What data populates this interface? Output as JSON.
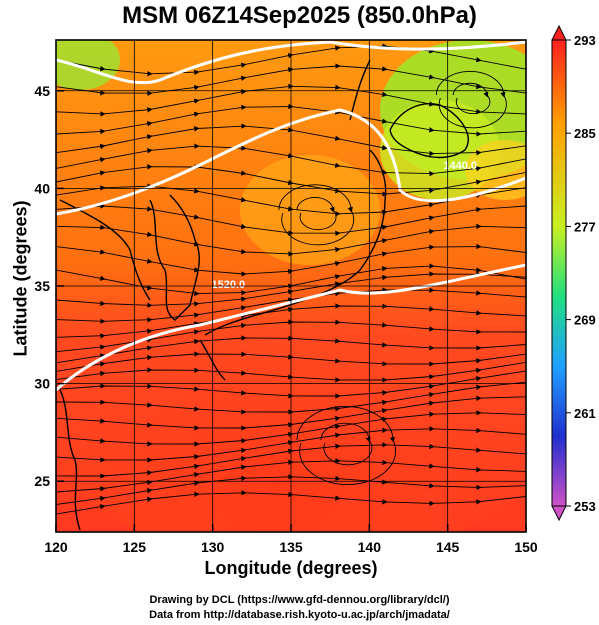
{
  "title": "MSM 06Z14Sep2025 (850.0hPa)",
  "x_axis": {
    "label": "Longitude (degrees)",
    "ticks": [
      {
        "value": 120,
        "label": "120"
      },
      {
        "value": 125,
        "label": "125"
      },
      {
        "value": 130,
        "label": "130"
      },
      {
        "value": 135,
        "label": "135"
      },
      {
        "value": 140,
        "label": "140"
      },
      {
        "value": 145,
        "label": "145"
      },
      {
        "value": 150,
        "label": "150"
      }
    ],
    "range": [
      120,
      150
    ]
  },
  "y_axis": {
    "label": "Latitude  (degrees)",
    "ticks": [
      {
        "value": 25,
        "label": "25"
      },
      {
        "value": 30,
        "label": "30"
      },
      {
        "value": 35,
        "label": "35"
      },
      {
        "value": 40,
        "label": "40"
      },
      {
        "value": 45,
        "label": "45"
      }
    ],
    "range": [
      22.4,
      47.6
    ]
  },
  "colorbar": {
    "min": 253,
    "max": 293,
    "labels": [
      "293",
      "285",
      "277",
      "269",
      "261",
      "253"
    ],
    "colors": [
      "#d060d0",
      "#2030d0",
      "#20b0ff",
      "#20e060",
      "#d0f020",
      "#ffa000",
      "#ff2020"
    ]
  },
  "contour_labels": [
    {
      "text": "1520.0",
      "lon": 131,
      "lat": 34.9
    },
    {
      "text": "1440.0",
      "lon": 145.8,
      "lat": 41.0
    }
  ],
  "credits": [
    "Drawing by DCL (https://www.gfd-dennou.org/library/dcl/)",
    "Data from http://database.rish.kyoto-u.ac.jp/arch/jmadata/"
  ]
}
